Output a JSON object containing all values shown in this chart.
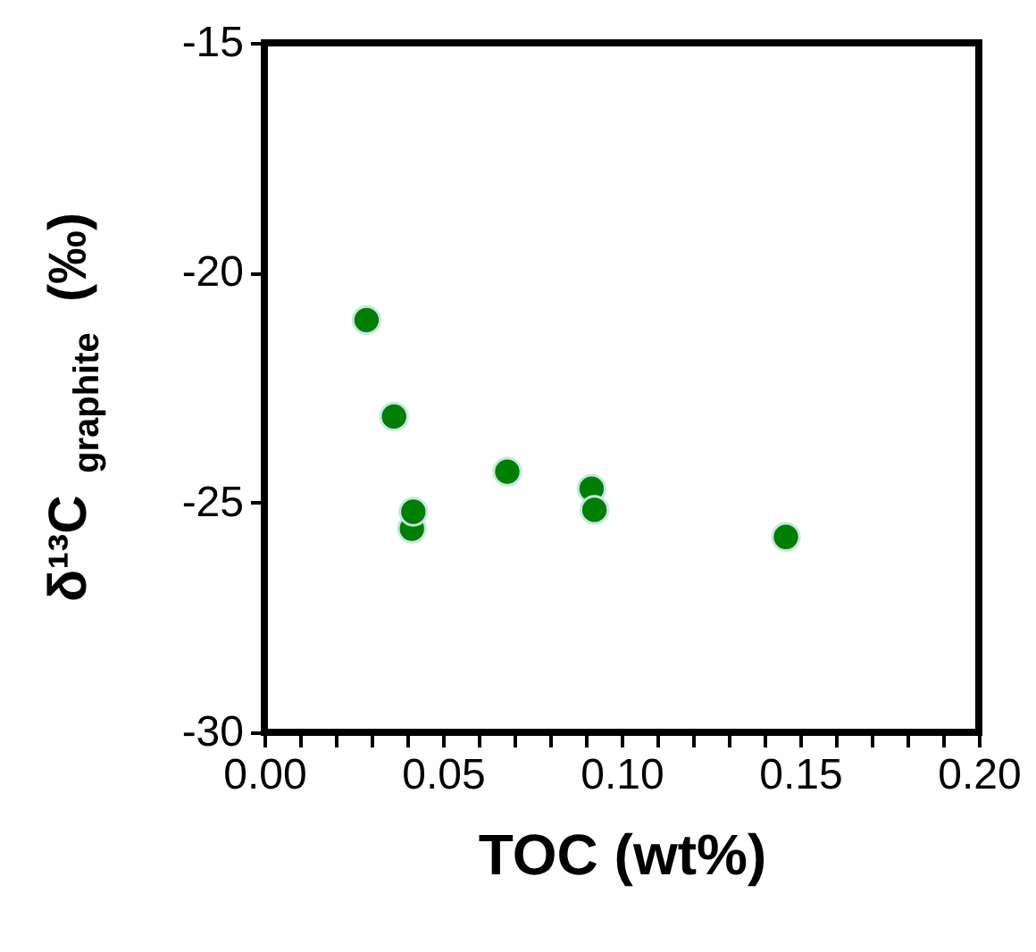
{
  "chart_data": {
    "type": "scatter",
    "xlabel": "TOC (wt%)",
    "ylabel": "δ¹³C$_{graphite}$ (‰)",
    "x": [
      0.0286,
      0.0363,
      0.0413,
      0.0417,
      0.068,
      0.0916,
      0.0924,
      0.146
    ],
    "series": [
      {
        "color": "#008000",
        "values": [
          -21.03,
          -23.13,
          -25.57,
          -25.2,
          -24.33,
          -24.7,
          -25.16,
          -25.75
        ]
      }
    ],
    "xlim": [
      0,
      0.2
    ],
    "ylim": [
      -30,
      -15
    ],
    "xticks": [
      {
        "value": 0,
        "label": "0.00"
      },
      {
        "value": 0.01,
        "label": null
      },
      {
        "value": 0.02,
        "label": null
      },
      {
        "value": 0.03,
        "label": null
      },
      {
        "value": 0.04,
        "label": null
      },
      {
        "value": 0.05,
        "label": "0.05"
      },
      {
        "value": 0.06,
        "label": null
      },
      {
        "value": 0.07,
        "label": null
      },
      {
        "value": 0.08,
        "label": null
      },
      {
        "value": 0.09,
        "label": null
      },
      {
        "value": 0.1,
        "label": "0.10"
      },
      {
        "value": 0.11,
        "label": null
      },
      {
        "value": 0.12,
        "label": null
      },
      {
        "value": 0.13,
        "label": null
      },
      {
        "value": 0.14,
        "label": null
      },
      {
        "value": 0.15,
        "label": "0.15"
      },
      {
        "value": 0.16,
        "label": null
      },
      {
        "value": 0.17,
        "label": null
      },
      {
        "value": 0.18,
        "label": null
      },
      {
        "value": 0.19,
        "label": null
      },
      {
        "value": 0.2,
        "label": "0.20"
      }
    ],
    "yticks": [
      -30,
      -25,
      -20,
      -15
    ],
    "grid": false
  }
}
